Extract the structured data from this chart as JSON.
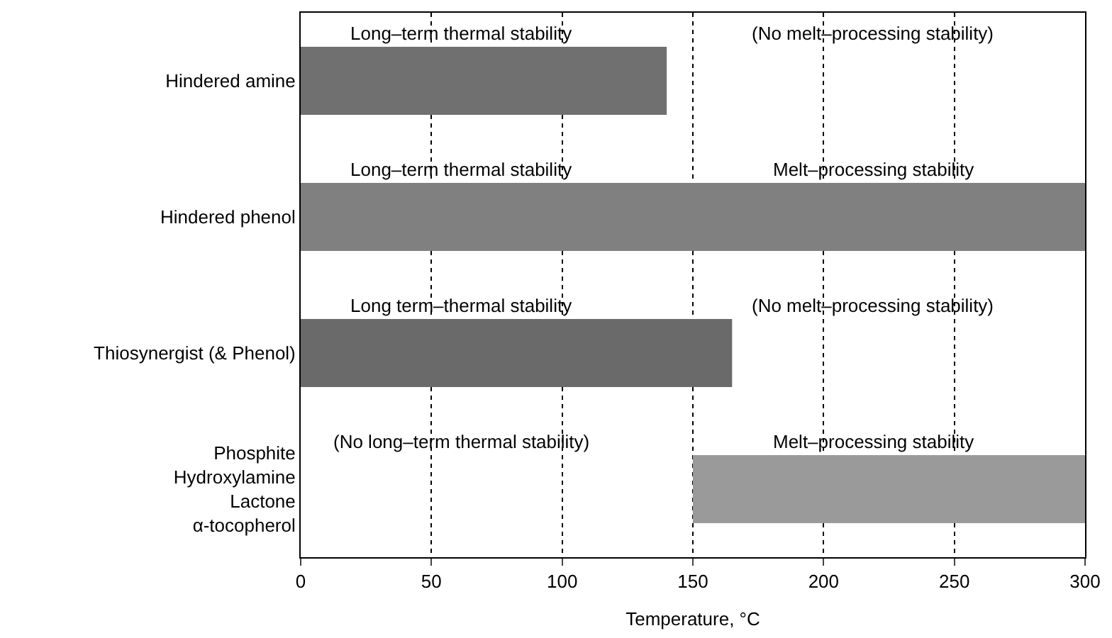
{
  "chart_data": {
    "type": "bar",
    "orientation": "horizontal",
    "xlabel": "Temperature, °C",
    "categories": [
      "Hindered amine",
      "Hindered phenol",
      "Thiosynergist (& Phenol)",
      "Phosphite\nHydroxylamine\nLactone\nα-tocopherol"
    ],
    "values": [
      140,
      300,
      165,
      150
    ],
    "base": [
      0,
      0,
      0,
      150
    ],
    "colors": [
      "#707070",
      "#808080",
      "#6a6a6a",
      "#9a9a9a"
    ],
    "xlim": [
      0,
      300
    ],
    "xticks": [
      0,
      50,
      100,
      150,
      200,
      250,
      300
    ],
    "grid": "x",
    "annotations": [
      "Long–term thermal stability",
      "(No melt–processing stability)",
      "Long–term thermal stability",
      "Melt–processing stability",
      "Long term–thermal stability",
      "(No melt–processing stability)",
      "(No long–term thermal stability)",
      "Melt–processing stability"
    ]
  }
}
